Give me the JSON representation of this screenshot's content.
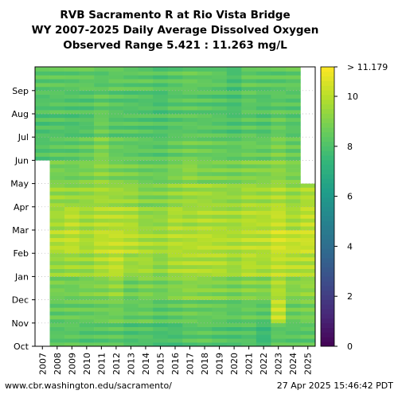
{
  "chart_data": {
    "type": "heatmap",
    "title": [
      "RVB Sacramento R at Rio Vista Bridge",
      "WY 2007-2025 Daily Average Dissolved Oxygen",
      "Observed Range 5.421 : 11.263 mg/L"
    ],
    "x_label": "",
    "y_label": "",
    "x_categories": [
      "2007",
      "2008",
      "2009",
      "2010",
      "2011",
      "2012",
      "2013",
      "2014",
      "2015",
      "2016",
      "2017",
      "2018",
      "2019",
      "2020",
      "2021",
      "2022",
      "2023",
      "2024",
      "2025"
    ],
    "y_ticks": [
      "Oct",
      "Nov",
      "Dec",
      "Jan",
      "Feb",
      "Mar",
      "Apr",
      "May",
      "Jun",
      "Jul",
      "Aug",
      "Sep"
    ],
    "colorbar": {
      "min": 0,
      "max": 11.179,
      "ticks": [
        "0",
        "2",
        "4",
        "6",
        "8",
        "10"
      ],
      "top_label": "> 11.179",
      "colormap": "viridis"
    },
    "monthly_mean_do_mg_per_l": {
      "columns": [
        "Oct",
        "Nov",
        "Dec",
        "Jan",
        "Feb",
        "Mar",
        "Apr",
        "May",
        "Jun",
        "Jul",
        "Aug",
        "Sep"
      ],
      "rows": [
        [
          null,
          null,
          null,
          null,
          null,
          null,
          null,
          null,
          8.1,
          8.0,
          8.1,
          8.3
        ],
        [
          8.2,
          8.4,
          8.8,
          9.3,
          9.9,
          9.6,
          9.4,
          8.8,
          8.3,
          8.1,
          8.2,
          8.3
        ],
        [
          8.3,
          8.5,
          8.7,
          9.5,
          10.1,
          10.0,
          9.3,
          8.7,
          8.3,
          8.0,
          8.1,
          8.3
        ],
        [
          8.1,
          8.5,
          8.9,
          9.4,
          9.7,
          9.6,
          9.4,
          8.9,
          8.5,
          8.1,
          8.1,
          8.4
        ],
        [
          8.2,
          8.6,
          9.0,
          9.8,
          10.1,
          9.9,
          9.6,
          9.2,
          9.0,
          8.6,
          8.4,
          8.2
        ],
        [
          8.3,
          8.7,
          9.3,
          10.1,
          10.2,
          9.9,
          9.5,
          8.9,
          8.5,
          8.2,
          8.2,
          8.4
        ],
        [
          8.0,
          8.4,
          8.6,
          9.5,
          10.0,
          9.8,
          9.4,
          8.8,
          8.4,
          8.2,
          8.1,
          8.3
        ],
        [
          8.1,
          8.5,
          8.9,
          9.6,
          9.7,
          9.3,
          9.0,
          8.6,
          8.3,
          8.1,
          8.1,
          8.3
        ],
        [
          7.9,
          8.2,
          8.7,
          9.2,
          9.6,
          9.3,
          9.0,
          8.6,
          8.2,
          8.0,
          7.9,
          8.1
        ],
        [
          7.9,
          8.4,
          9.0,
          9.7,
          9.9,
          9.8,
          9.3,
          8.9,
          8.5,
          8.2,
          8.2,
          8.3
        ],
        [
          8.2,
          8.6,
          9.2,
          9.8,
          9.9,
          9.6,
          9.5,
          9.2,
          8.7,
          8.3,
          8.3,
          8.5
        ],
        [
          8.3,
          8.5,
          9.1,
          9.8,
          10.0,
          9.8,
          9.5,
          8.9,
          8.6,
          8.3,
          8.2,
          8.4
        ],
        [
          8.1,
          8.5,
          9.0,
          9.8,
          9.9,
          9.7,
          9.4,
          8.9,
          8.5,
          8.2,
          8.1,
          8.3
        ],
        [
          8.0,
          8.3,
          8.8,
          9.5,
          9.8,
          9.6,
          9.3,
          8.8,
          8.4,
          8.0,
          7.9,
          7.9
        ],
        [
          8.1,
          8.5,
          9.1,
          9.9,
          10.0,
          9.9,
          9.6,
          9.0,
          8.6,
          8.3,
          8.3,
          8.4
        ],
        [
          7.6,
          8.3,
          9.0,
          9.7,
          10.0,
          9.9,
          9.5,
          9.0,
          8.5,
          8.1,
          8.1,
          8.3
        ],
        [
          8.3,
          10.2,
          9.8,
          10.1,
          10.4,
          10.2,
          9.8,
          9.2,
          8.9,
          8.5,
          8.3,
          8.3
        ],
        [
          8.2,
          8.6,
          9.1,
          9.9,
          10.2,
          9.7,
          9.4,
          8.9,
          8.5,
          8.2,
          8.2,
          8.4
        ],
        [
          8.3,
          8.8,
          9.3,
          9.9,
          10.3,
          10.1,
          9.8,
          null,
          null,
          null,
          null,
          null
        ]
      ]
    }
  },
  "footer": {
    "left": "www.cbr.washington.edu/sacramento/",
    "right": "27 Apr 2025 15:46:42 PDT"
  }
}
